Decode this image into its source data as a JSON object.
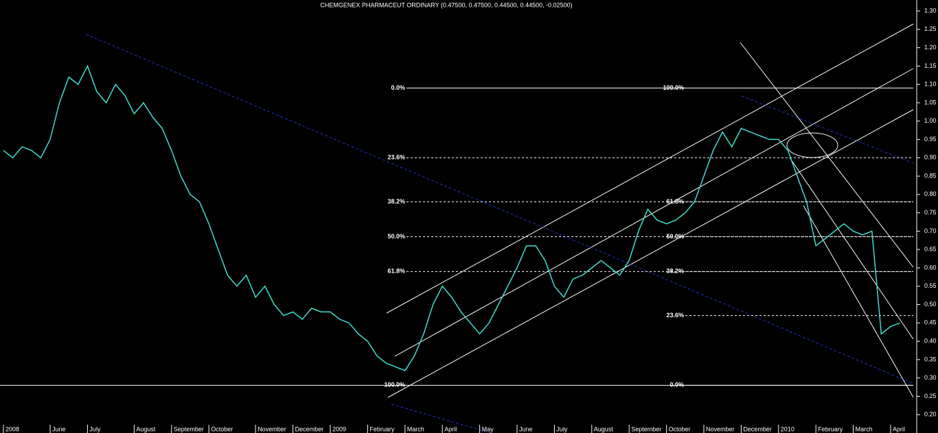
{
  "chart_data": {
    "type": "line",
    "title": "CHEMGENEX PHARMACEUT ORDINARY (0.47500, 0.47500, 0.44500, 0.44500, -0.02500)",
    "categories": [
      "2008",
      null,
      null,
      null,
      null,
      "June",
      null,
      null,
      null,
      "July",
      null,
      null,
      null,
      null,
      "August",
      null,
      null,
      null,
      "September",
      null,
      null,
      null,
      "October",
      null,
      null,
      null,
      null,
      "November",
      null,
      null,
      null,
      "December",
      null,
      null,
      null,
      "2009",
      null,
      null,
      null,
      "February",
      null,
      null,
      null,
      "March",
      null,
      null,
      null,
      "April",
      null,
      null,
      null,
      "May",
      null,
      null,
      null,
      "June",
      null,
      null,
      null,
      "July",
      null,
      null,
      null,
      "August",
      null,
      null,
      null,
      "September",
      null,
      null,
      null,
      "October",
      null,
      null,
      null,
      "November",
      null,
      null,
      null,
      "December",
      null,
      null,
      null,
      "2010",
      null,
      null,
      null,
      "February",
      null,
      null,
      null,
      "March",
      null,
      null,
      null,
      "April",
      null
    ],
    "series": [
      {
        "color": "#40e0d0",
        "values": [
          0.92,
          0.9,
          0.93,
          0.92,
          0.9,
          0.95,
          1.05,
          1.12,
          1.1,
          1.15,
          1.08,
          1.05,
          1.1,
          1.07,
          1.02,
          1.05,
          1.01,
          0.98,
          0.92,
          0.85,
          0.8,
          0.78,
          0.72,
          0.65,
          0.58,
          0.55,
          0.58,
          0.52,
          0.55,
          0.5,
          0.47,
          0.48,
          0.46,
          0.49,
          0.48,
          0.48,
          0.46,
          0.45,
          0.42,
          0.4,
          0.36,
          0.34,
          0.33,
          0.32,
          0.36,
          0.42,
          0.5,
          0.55,
          0.52,
          0.48,
          0.45,
          0.42,
          0.45,
          0.5,
          0.55,
          0.6,
          0.66,
          0.66,
          0.62,
          0.55,
          0.52,
          0.57,
          0.58,
          0.6,
          0.62,
          0.6,
          0.58,
          0.62,
          0.7,
          0.76,
          0.73,
          0.72,
          0.73,
          0.75,
          0.78,
          0.85,
          0.92,
          0.97,
          0.93,
          0.98,
          0.97,
          0.96,
          0.95,
          0.95,
          0.92,
          0.85,
          0.78,
          0.66,
          0.68,
          0.7,
          0.72,
          0.7,
          0.69,
          0.7,
          0.42,
          0.44,
          0.45
        ]
      }
    ],
    "ylim": [
      0.15,
      1.33
    ],
    "yticks": [
      {
        "value": 0.2,
        "label": "0.20"
      },
      {
        "value": 0.25,
        "label": "0.25"
      },
      {
        "value": 0.3,
        "label": "0.30"
      },
      {
        "value": 0.35,
        "label": "0.35"
      },
      {
        "value": 0.4,
        "label": "0.40"
      },
      {
        "value": 0.45,
        "label": "0.45"
      },
      {
        "value": 0.5,
        "label": "0.50"
      },
      {
        "value": 0.55,
        "label": "0.55"
      },
      {
        "value": 0.6,
        "label": "0.60"
      },
      {
        "value": 0.65,
        "label": "0.65"
      },
      {
        "value": 0.7,
        "label": "0.70"
      },
      {
        "value": 0.75,
        "label": "0.75"
      },
      {
        "value": 0.8,
        "label": "0.80"
      },
      {
        "value": 0.85,
        "label": "0.85"
      },
      {
        "value": 0.9,
        "label": "0.90"
      },
      {
        "value": 0.95,
        "label": "0.95"
      },
      {
        "value": 1.0,
        "label": "1.00"
      },
      {
        "value": 1.05,
        "label": "1.05"
      },
      {
        "value": 1.1,
        "label": "1.10"
      },
      {
        "value": 1.15,
        "label": "1.15"
      },
      {
        "value": 1.2,
        "label": "1.20"
      },
      {
        "value": 1.25,
        "label": "1.25"
      },
      {
        "value": 1.3,
        "label": "1.30"
      }
    ],
    "fib_left": [
      {
        "value": 1.09,
        "label": "0.0%"
      },
      {
        "value": 0.9,
        "label": "23.6%"
      },
      {
        "value": 0.78,
        "label": "38.2%"
      },
      {
        "value": 0.685,
        "label": "50.0%"
      },
      {
        "value": 0.59,
        "label": "61.8%"
      },
      {
        "value": 0.28,
        "label": "100.0%"
      }
    ],
    "fib_right": [
      {
        "value": 1.09,
        "label": "100.0%"
      },
      {
        "value": 0.78,
        "label": "61.8%"
      },
      {
        "value": 0.685,
        "label": "50.0%"
      },
      {
        "value": 0.59,
        "label": "38.2%"
      },
      {
        "value": 0.47,
        "label": "23.6%"
      },
      {
        "value": 0.28,
        "label": "0.0%"
      }
    ]
  }
}
